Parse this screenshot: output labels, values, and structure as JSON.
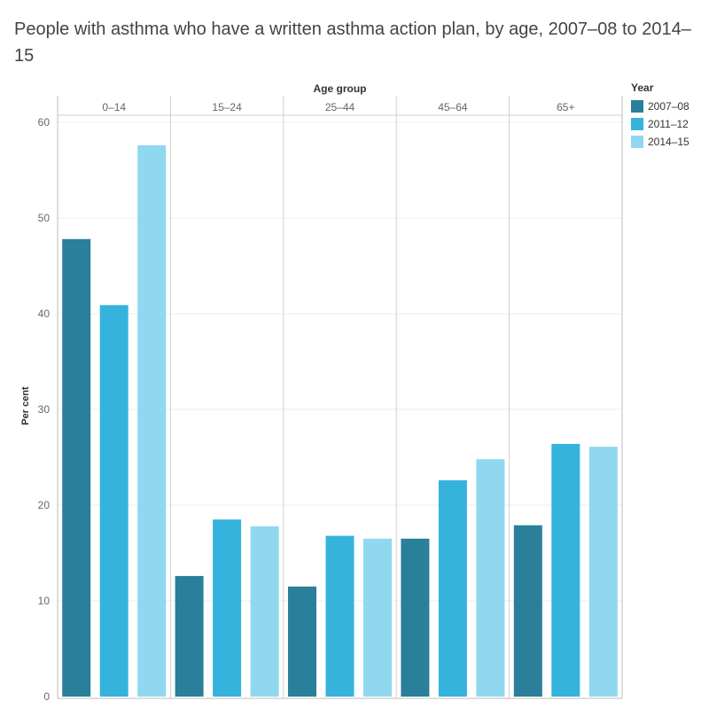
{
  "chart_data": {
    "type": "bar",
    "title": "People with asthma who have a written asthma action plan, by age, 2007–08 to 2014–15",
    "facet_label": "Age group",
    "categories": [
      "0–14",
      "15–24",
      "25–44",
      "45–64",
      "65+"
    ],
    "ylabel": "Per cent",
    "ylim": [
      0,
      60
    ],
    "yticks": [
      0,
      10,
      20,
      30,
      40,
      50,
      60
    ],
    "grid": true,
    "legend": {
      "title": "Year",
      "position": "right"
    },
    "series": [
      {
        "name": "2007–08",
        "color": "#2a7f9a",
        "values": [
          47.8,
          12.6,
          11.5,
          16.5,
          17.9
        ]
      },
      {
        "name": "2011–12",
        "color": "#35b3dc",
        "values": [
          40.9,
          18.5,
          16.8,
          22.6,
          26.4
        ]
      },
      {
        "name": "2014–15",
        "color": "#8fd8f0",
        "values": [
          57.6,
          17.8,
          16.5,
          24.8,
          26.1
        ]
      }
    ]
  }
}
